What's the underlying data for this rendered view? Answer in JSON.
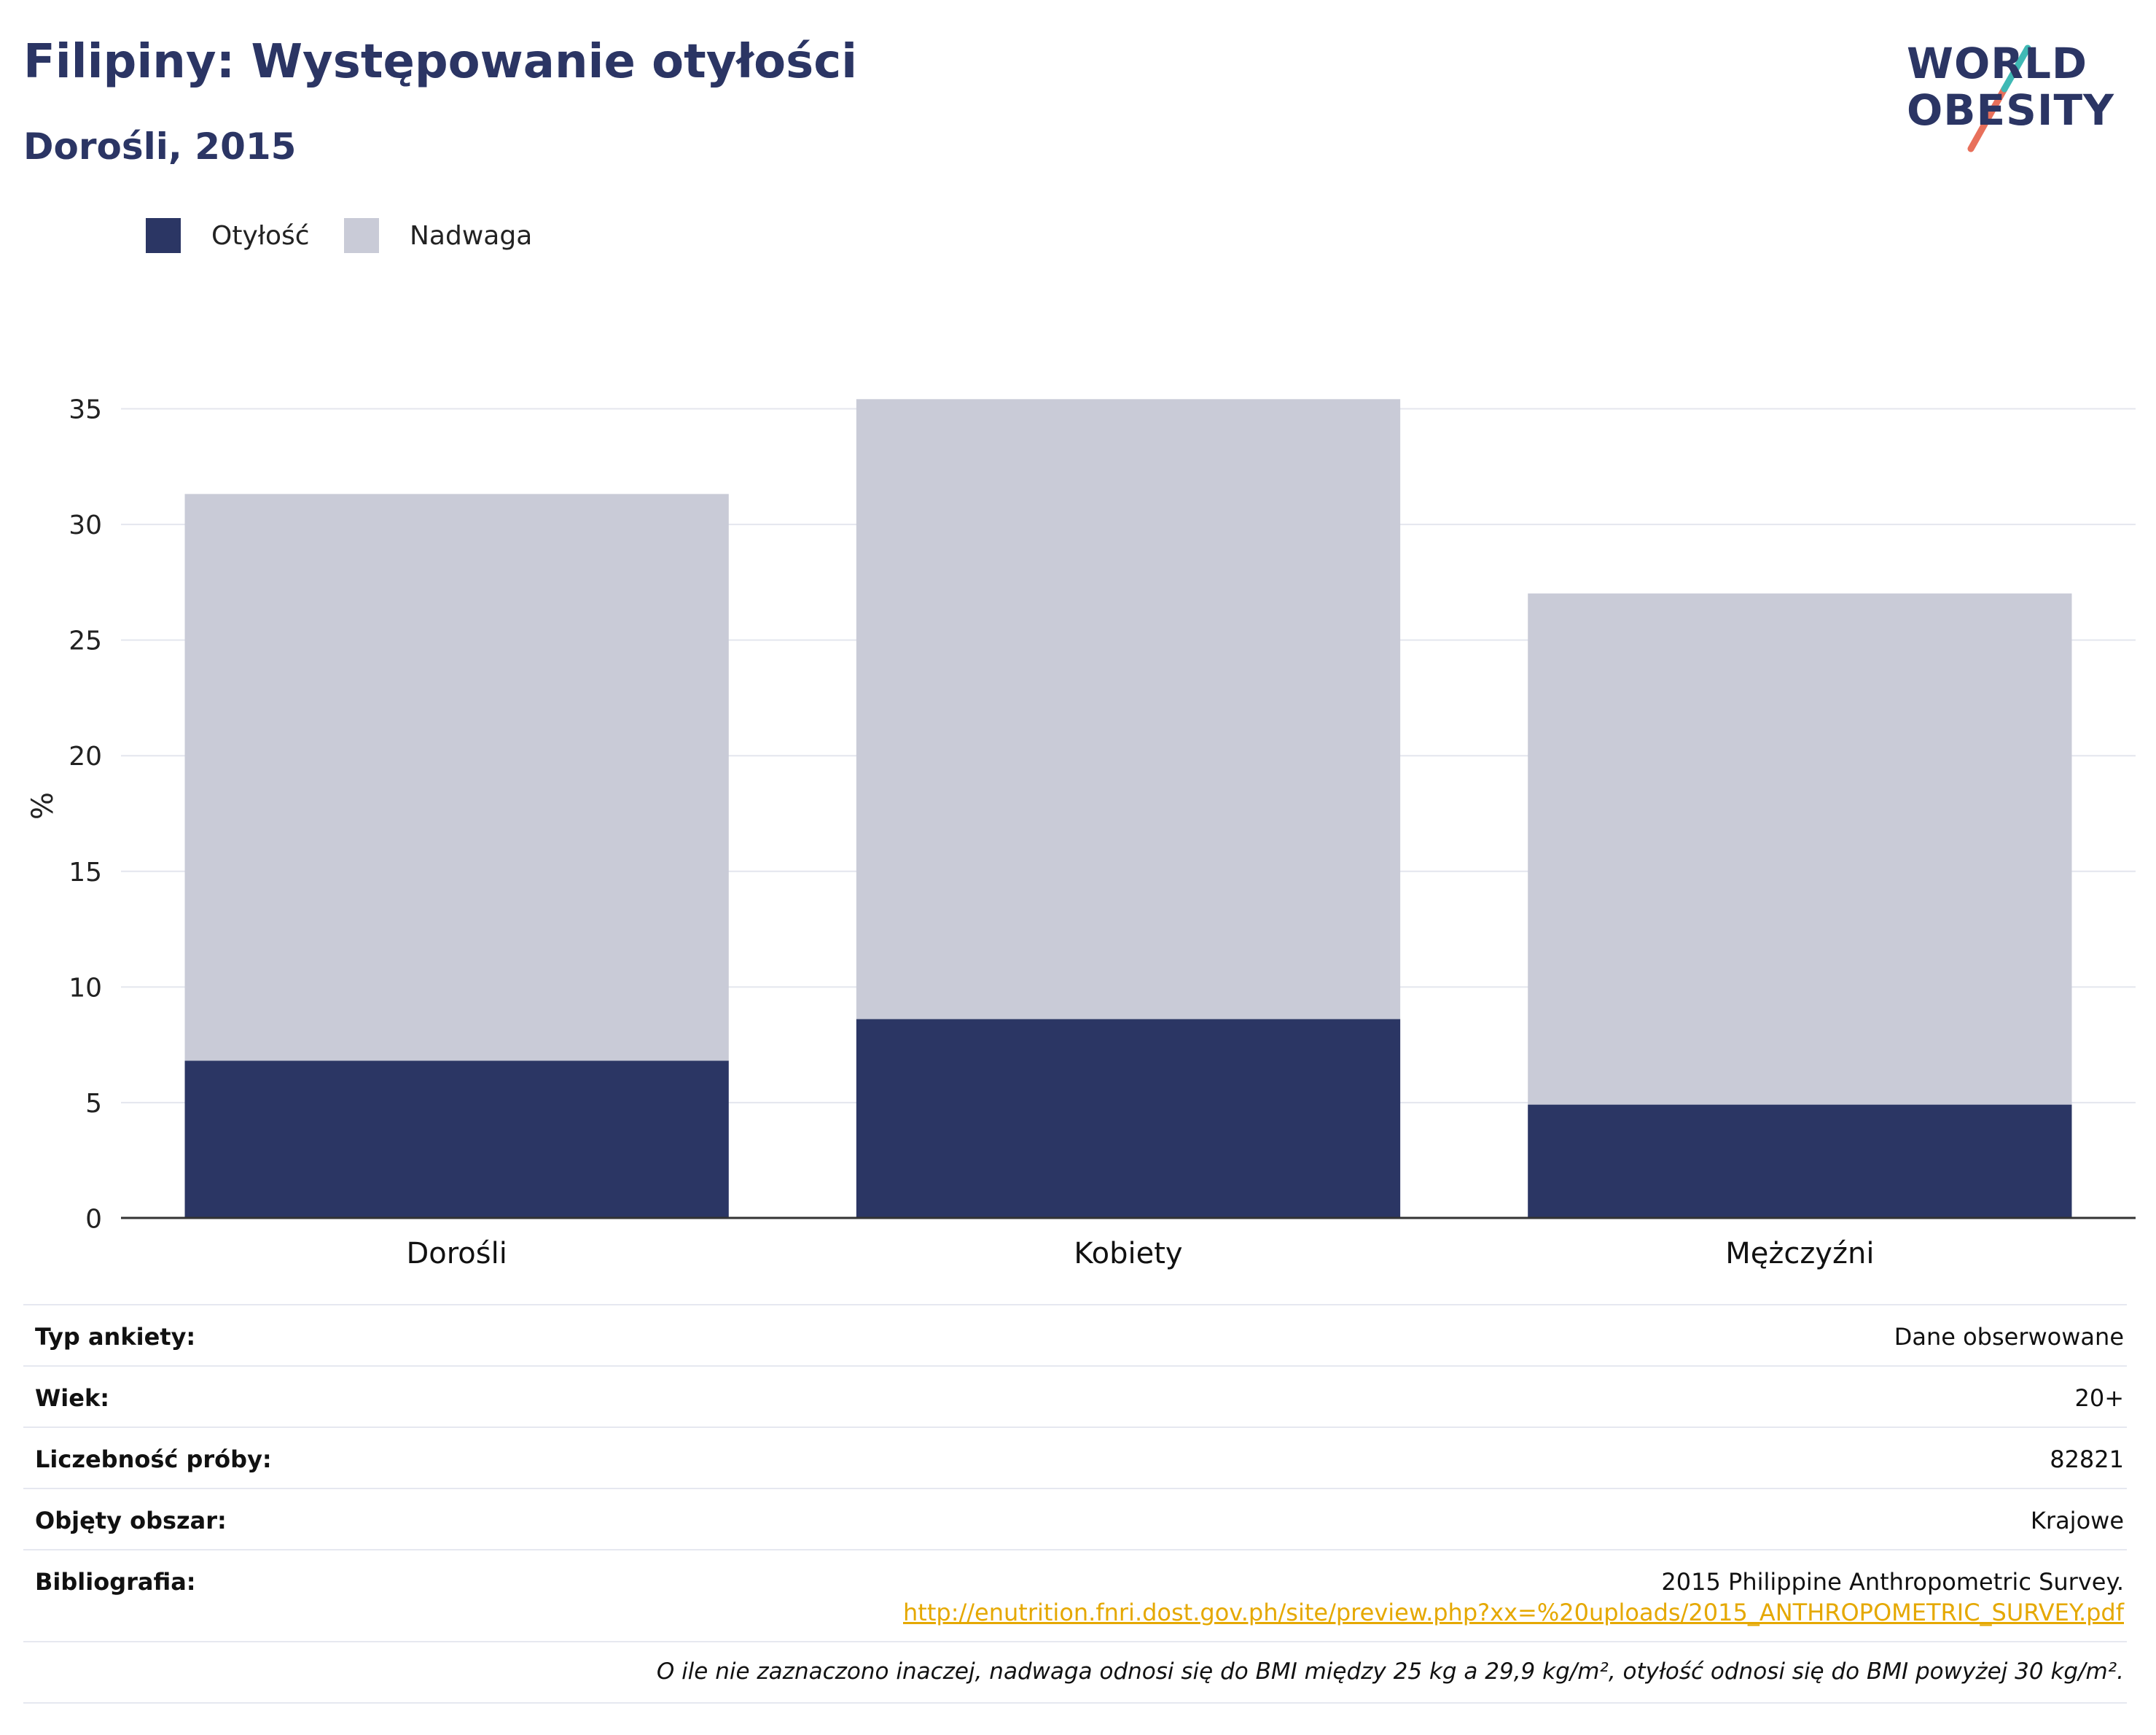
{
  "header": {
    "title": "Filipiny: Występowanie otyłości",
    "subtitle": "Dorośli, 2015"
  },
  "logo": {
    "line1": "WORLD",
    "line2": "OBESITY",
    "accent_colors": [
      "#3fb9b5",
      "#e8705b"
    ]
  },
  "legend": [
    {
      "label": "Otyłość",
      "color": "#2b3664"
    },
    {
      "label": "Nadwaga",
      "color": "#c9cbd7"
    }
  ],
  "chart_data": {
    "type": "bar",
    "stacked": true,
    "categories": [
      "Dorośli",
      "Kobiety",
      "Mężczyźni"
    ],
    "series": [
      {
        "name": "Otyłość",
        "values": [
          6.8,
          8.6,
          4.9
        ],
        "color": "#2b3664"
      },
      {
        "name": "Nadwaga",
        "values": [
          24.5,
          26.8,
          22.1
        ],
        "color": "#c9cbd7"
      }
    ],
    "ylabel": "%",
    "ylim": [
      0,
      35
    ],
    "yticks": [
      0,
      5,
      10,
      15,
      20,
      25,
      30,
      35
    ],
    "grid": true,
    "legend_position": "top-left"
  },
  "info": {
    "survey_type_label": "Typ ankiety:",
    "survey_type_value": "Dane obserwowane",
    "age_label": "Wiek:",
    "age_value": "20+",
    "sample_label": "Liczebność próby:",
    "sample_value": "82821",
    "area_label": "Objęty obszar:",
    "area_value": "Krajowe",
    "biblio_label": "Bibliografia:",
    "biblio_value": "2015 Philippine Anthropometric Survey.",
    "biblio_link": "http://enutrition.fnri.dost.gov.ph/site/preview.php?xx=%20uploads/2015_ANTHROPOMETRIC_SURVEY.pdf",
    "footnote": "O ile nie zaznaczono inaczej, nadwaga odnosi się do BMI między 25 kg a 29,9 kg/m², otyłość odnosi się do BMI powyżej 30 kg/m²."
  }
}
